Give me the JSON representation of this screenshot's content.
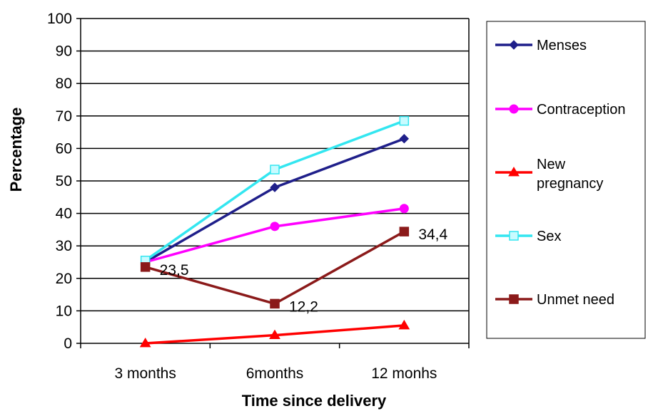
{
  "chart_data": {
    "type": "line",
    "title": "",
    "xlabel": "Time since delivery",
    "ylabel": "Percentage",
    "categories": [
      "3 months",
      "6months",
      "12 monhs"
    ],
    "ylim": [
      0,
      100
    ],
    "yticks": [
      0,
      10,
      20,
      30,
      40,
      50,
      60,
      70,
      80,
      90,
      100
    ],
    "grid": "horizontal",
    "legend_position": "right",
    "series": [
      {
        "name": "Menses",
        "values": [
          25,
          48,
          63
        ],
        "color": "#1f1f8a",
        "marker": "diamond"
      },
      {
        "name": "Contraception",
        "values": [
          25,
          36,
          41.5
        ],
        "color": "#ff00ff",
        "marker": "circle"
      },
      {
        "name": "New\npregnancy",
        "values": [
          0,
          2.5,
          5.5
        ],
        "color": "#ff0000",
        "marker": "triangle"
      },
      {
        "name": "Sex",
        "values": [
          25.5,
          53.5,
          68.5
        ],
        "color": "#33e6f0",
        "marker": "square"
      },
      {
        "name": "Unmet need",
        "values": [
          23.5,
          12.2,
          34.4
        ],
        "color": "#8b1a1a",
        "marker": "square",
        "data_labels": [
          "23,5",
          "12,2",
          "34,4"
        ]
      }
    ]
  }
}
